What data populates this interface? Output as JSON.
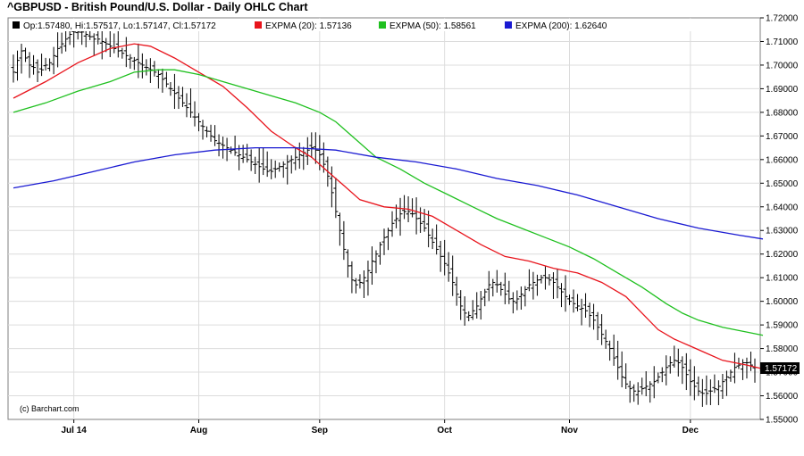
{
  "chart_data": {
    "type": "ohlc",
    "title": "^GBPUSD - British Pound/U.S. Dollar - Daily OHLC Chart",
    "credit": "(c) Barchart.com",
    "legend": {
      "ohlc": "Op:1.57480, Hi:1.57517, Lo:1.57147, Cl:1.57172",
      "series": [
        {
          "label": "EXPMA (20): 1.57136",
          "color": "#e8141c"
        },
        {
          "label": "EXPMA (50): 1.58561",
          "color": "#1fc01f"
        },
        {
          "label": "EXPMA (200): 1.62640",
          "color": "#1a1ad2"
        }
      ]
    },
    "y_axis": {
      "min": 1.55,
      "max": 1.72,
      "ticks": [
        1.55,
        1.56,
        1.57,
        1.58,
        1.59,
        1.6,
        1.61,
        1.62,
        1.63,
        1.64,
        1.65,
        1.66,
        1.67,
        1.68,
        1.69,
        1.7,
        1.71,
        1.72
      ],
      "tick_labels": [
        "1.55000",
        "1.56000",
        "1.57000",
        "1.58000",
        "1.59000",
        "1.60000",
        "1.61000",
        "1.62000",
        "1.63000",
        "1.64000",
        "1.65000",
        "1.66000",
        "1.67000",
        "1.68000",
        "1.69000",
        "1.70000",
        "1.71000",
        "1.72000"
      ]
    },
    "x_axis": {
      "months": [
        {
          "label": "Jul 14",
          "index": 15
        },
        {
          "label": "Aug",
          "index": 46
        },
        {
          "label": "Sep",
          "index": 76
        },
        {
          "label": "Oct",
          "index": 107
        },
        {
          "label": "Nov",
          "index": 138
        },
        {
          "label": "Dec",
          "index": 168
        }
      ]
    },
    "last_price": {
      "value": 1.57172,
      "label": "1.57172"
    },
    "close": [
      1.697,
      1.702,
      1.706,
      1.703,
      1.7,
      1.699,
      1.697,
      1.698,
      1.7,
      1.701,
      1.704,
      1.707,
      1.709,
      1.711,
      1.713,
      1.714,
      1.714,
      1.714,
      1.713,
      1.712,
      1.711,
      1.711,
      1.71,
      1.709,
      1.708,
      1.707,
      1.706,
      1.705,
      1.704,
      1.703,
      1.702,
      1.701,
      1.7,
      1.699,
      1.698,
      1.697,
      1.696,
      1.694,
      1.692,
      1.69,
      1.688,
      1.686,
      1.684,
      1.682,
      1.68,
      1.678,
      1.676,
      1.674,
      1.672,
      1.67,
      1.668,
      1.667,
      1.666,
      1.665,
      1.664,
      1.663,
      1.662,
      1.661,
      1.66,
      1.659,
      1.658,
      1.657,
      1.656,
      1.655,
      1.655,
      1.656,
      1.657,
      1.658,
      1.659,
      1.66,
      1.661,
      1.662,
      1.663,
      1.664,
      1.665,
      1.664,
      1.662,
      1.658,
      1.653,
      1.646,
      1.638,
      1.63,
      1.622,
      1.615,
      1.609,
      1.607,
      1.608,
      1.61,
      1.613,
      1.617,
      1.62,
      1.624,
      1.627,
      1.63,
      1.633,
      1.635,
      1.637,
      1.638,
      1.638,
      1.637,
      1.635,
      1.633,
      1.631,
      1.628,
      1.625,
      1.622,
      1.619,
      1.616,
      1.612,
      1.608,
      1.603,
      1.598,
      1.595,
      1.594,
      1.596,
      1.598,
      1.601,
      1.604,
      1.607,
      1.608,
      1.607,
      1.605,
      1.603,
      1.601,
      1.6,
      1.601,
      1.603,
      1.605,
      1.607,
      1.608,
      1.609,
      1.61,
      1.61,
      1.609,
      1.608,
      1.606,
      1.604,
      1.602,
      1.6,
      1.599,
      1.598,
      1.597,
      1.596,
      1.594,
      1.592,
      1.589,
      1.586,
      1.583,
      1.58,
      1.576,
      1.572,
      1.568,
      1.565,
      1.563,
      1.562,
      1.562,
      1.563,
      1.564,
      1.565,
      1.566,
      1.568,
      1.57,
      1.572,
      1.574,
      1.575,
      1.574,
      1.572,
      1.569,
      1.566,
      1.564,
      1.562,
      1.561,
      1.561,
      1.562,
      1.563,
      1.564,
      1.566,
      1.568,
      1.57,
      1.572,
      1.573,
      1.574,
      1.574,
      1.573,
      1.572
    ],
    "series": [
      {
        "name": "EXPMA (20)",
        "color": "#e8141c",
        "points": [
          [
            0,
            1.686
          ],
          [
            8,
            1.693
          ],
          [
            16,
            1.701
          ],
          [
            24,
            1.707
          ],
          [
            30,
            1.709
          ],
          [
            34,
            1.708
          ],
          [
            40,
            1.703
          ],
          [
            46,
            1.697
          ],
          [
            52,
            1.691
          ],
          [
            58,
            1.682
          ],
          [
            64,
            1.672
          ],
          [
            70,
            1.665
          ],
          [
            74,
            1.661
          ],
          [
            78,
            1.655
          ],
          [
            82,
            1.649
          ],
          [
            86,
            1.643
          ],
          [
            92,
            1.64
          ],
          [
            98,
            1.639
          ],
          [
            104,
            1.636
          ],
          [
            110,
            1.63
          ],
          [
            116,
            1.624
          ],
          [
            122,
            1.619
          ],
          [
            128,
            1.617
          ],
          [
            134,
            1.614
          ],
          [
            140,
            1.612
          ],
          [
            146,
            1.608
          ],
          [
            152,
            1.602
          ],
          [
            156,
            1.595
          ],
          [
            160,
            1.588
          ],
          [
            164,
            1.584
          ],
          [
            168,
            1.581
          ],
          [
            172,
            1.578
          ],
          [
            176,
            1.575
          ],
          [
            182,
            1.573
          ],
          [
            186,
            1.5714
          ]
        ]
      },
      {
        "name": "EXPMA (50)",
        "color": "#1fc01f",
        "points": [
          [
            0,
            1.68
          ],
          [
            8,
            1.684
          ],
          [
            16,
            1.689
          ],
          [
            24,
            1.693
          ],
          [
            30,
            1.697
          ],
          [
            36,
            1.698
          ],
          [
            40,
            1.698
          ],
          [
            46,
            1.696
          ],
          [
            52,
            1.693
          ],
          [
            58,
            1.69
          ],
          [
            64,
            1.687
          ],
          [
            70,
            1.684
          ],
          [
            76,
            1.68
          ],
          [
            80,
            1.676
          ],
          [
            84,
            1.67
          ],
          [
            90,
            1.661
          ],
          [
            96,
            1.656
          ],
          [
            102,
            1.65
          ],
          [
            108,
            1.645
          ],
          [
            114,
            1.64
          ],
          [
            120,
            1.635
          ],
          [
            126,
            1.631
          ],
          [
            132,
            1.627
          ],
          [
            138,
            1.623
          ],
          [
            144,
            1.618
          ],
          [
            150,
            1.612
          ],
          [
            156,
            1.606
          ],
          [
            162,
            1.599
          ],
          [
            166,
            1.595
          ],
          [
            170,
            1.592
          ],
          [
            176,
            1.589
          ],
          [
            182,
            1.587
          ],
          [
            186,
            1.5856
          ]
        ]
      },
      {
        "name": "EXPMA (200)",
        "color": "#1a1ad2",
        "points": [
          [
            0,
            1.648
          ],
          [
            10,
            1.651
          ],
          [
            20,
            1.655
          ],
          [
            30,
            1.659
          ],
          [
            40,
            1.662
          ],
          [
            50,
            1.664
          ],
          [
            60,
            1.665
          ],
          [
            70,
            1.665
          ],
          [
            80,
            1.664
          ],
          [
            90,
            1.661
          ],
          [
            100,
            1.659
          ],
          [
            110,
            1.656
          ],
          [
            120,
            1.652
          ],
          [
            130,
            1.649
          ],
          [
            140,
            1.645
          ],
          [
            150,
            1.64
          ],
          [
            160,
            1.635
          ],
          [
            170,
            1.631
          ],
          [
            180,
            1.628
          ],
          [
            186,
            1.6264
          ]
        ]
      }
    ]
  }
}
